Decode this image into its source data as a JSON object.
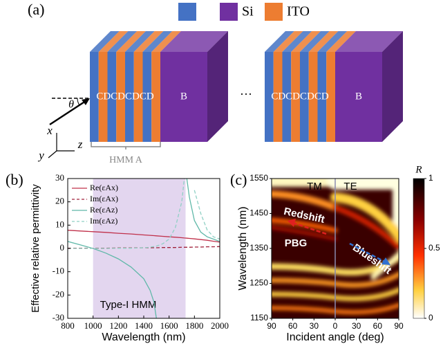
{
  "panel_a": {
    "label": "(a)",
    "legend": [
      {
        "color": "#4472c4"
      },
      {
        "color": "#7030a0",
        "label": "Si"
      },
      {
        "color": "#ed7d31",
        "label": "ITO"
      }
    ],
    "structures": [
      {
        "stack": "CDCDCDCD",
        "bulk": "B"
      },
      {
        "stack": "CDCDCDCD",
        "bulk": "B"
      }
    ],
    "ellipsis": "···",
    "angle": "θ",
    "axes": [
      "x",
      "y",
      "z"
    ],
    "bracket": "HMM A"
  },
  "chart_data": [
    {
      "type": "line",
      "panel_label": "(b)",
      "xlabel": "Wavelength (nm)",
      "ylabel": "Effective relative permittivity",
      "x": [
        800,
        900,
        1000,
        1100,
        1200,
        1300,
        1400,
        1450,
        1480,
        1500,
        1550,
        1600,
        1650,
        1700,
        1720,
        1740,
        1760,
        1800,
        1850,
        1900,
        1950,
        2000
      ],
      "series": [
        {
          "name": "Re(εAx)",
          "color": "#c0304a",
          "dash": false,
          "values": [
            7.8,
            7.5,
            7.2,
            6.9,
            6.5,
            6.2,
            5.8,
            5.6,
            5.5,
            5.4,
            5.2,
            5.0,
            4.8,
            4.6,
            4.5,
            4.4,
            4.3,
            4.1,
            3.8,
            3.5,
            3.1,
            2.7
          ]
        },
        {
          "name": "Im(εAx)",
          "color": "#a0203a",
          "dash": true,
          "values": [
            0.1,
            0.1,
            0.1,
            0.1,
            0.2,
            0.2,
            0.3,
            0.3,
            0.3,
            0.3,
            0.4,
            0.4,
            0.4,
            0.5,
            0.5,
            0.5,
            0.5,
            0.6,
            0.6,
            0.7,
            0.7,
            0.8
          ]
        },
        {
          "name": "Re(εAz)",
          "color": "#5fb8a8",
          "dash": false,
          "values": [
            3,
            1.5,
            0,
            -2,
            -4.5,
            -8,
            -13,
            -18,
            -23,
            -30,
            null,
            null,
            null,
            null,
            null,
            30,
            22,
            12,
            7,
            5,
            4,
            3
          ]
        },
        {
          "name": "Im(εAz)",
          "color": "#8fd0c4",
          "dash": true,
          "values": [
            0,
            0,
            0,
            0,
            0.1,
            0.1,
            0.3,
            0.5,
            0.8,
            1,
            2,
            4,
            9,
            20,
            30,
            null,
            null,
            25,
            15,
            8,
            5,
            4
          ]
        }
      ],
      "xlim": [
        800,
        2000
      ],
      "ylim": [
        -30,
        30
      ],
      "xticks": [
        800,
        1000,
        1200,
        1400,
        1600,
        1800,
        2000
      ],
      "yticks": [
        -30,
        -20,
        -10,
        0,
        10,
        20,
        30
      ],
      "shaded_region": {
        "range": [
          1000,
          1730
        ],
        "label": "Type-I HMM",
        "color": "#e3d6ef"
      }
    },
    {
      "type": "heatmap",
      "panel_label": "(c)",
      "xlabel": "Incident angle (deg)",
      "ylabel": "Wavelength (nm)",
      "xlim": [
        -90,
        90
      ],
      "xticks": [
        {
          "value": -90,
          "label": "90"
        },
        {
          "value": -60,
          "label": "60"
        },
        {
          "value": -30,
          "label": "30"
        },
        0,
        30,
        60,
        90
      ],
      "ylim": [
        1150,
        1550
      ],
      "yticks": [
        1150,
        1250,
        1350,
        1450,
        1550
      ],
      "colorbar": {
        "label": "R",
        "lim": [
          0,
          1
        ],
        "ticks": [
          0,
          0.5,
          1
        ]
      },
      "annotations": [
        "TM",
        "TE",
        "Redshift",
        "PBG",
        "Blueshift"
      ]
    }
  ]
}
